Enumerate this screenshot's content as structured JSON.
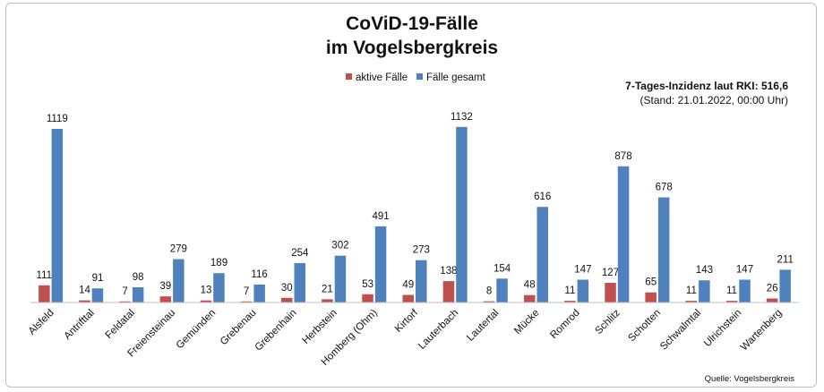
{
  "chart_data": {
    "type": "bar",
    "title": "CoViD-19-Fälle",
    "subtitle": "im Vogelsbergkreis",
    "legend_position": "top-center",
    "grid": false,
    "ylim": [
      0,
      1200
    ],
    "categories": [
      "Alsfeld",
      "Antrifttal",
      "Feldatal",
      "Freiensteinau",
      "Gemünden",
      "Grebenau",
      "Grebenhain",
      "Herbstein",
      "Homberg (Ohm)",
      "Kirtorf",
      "Lauterbach",
      "Lautertal",
      "Mücke",
      "Romrod",
      "Schlitz",
      "Schotten",
      "Schwalmtal",
      "Ulrichstein",
      "Wartenberg"
    ],
    "series": [
      {
        "name": "aktive Fälle",
        "color": "#c0504d",
        "values": [
          111,
          14,
          7,
          39,
          13,
          7,
          30,
          21,
          53,
          49,
          138,
          8,
          48,
          11,
          127,
          65,
          11,
          11,
          26
        ]
      },
      {
        "name": "Fälle gesamt",
        "color": "#4f81bd",
        "values": [
          1119,
          91,
          98,
          279,
          189,
          116,
          254,
          302,
          491,
          273,
          1132,
          154,
          616,
          147,
          878,
          678,
          143,
          147,
          211
        ]
      }
    ],
    "annotation": {
      "line1": "7-Tages-Inzidenz laut RKI: 516,6",
      "line2": "(Stand: 21.01.2022, 00:00 Uhr)"
    },
    "source": "Quelle: Vogelsbergkreis"
  }
}
